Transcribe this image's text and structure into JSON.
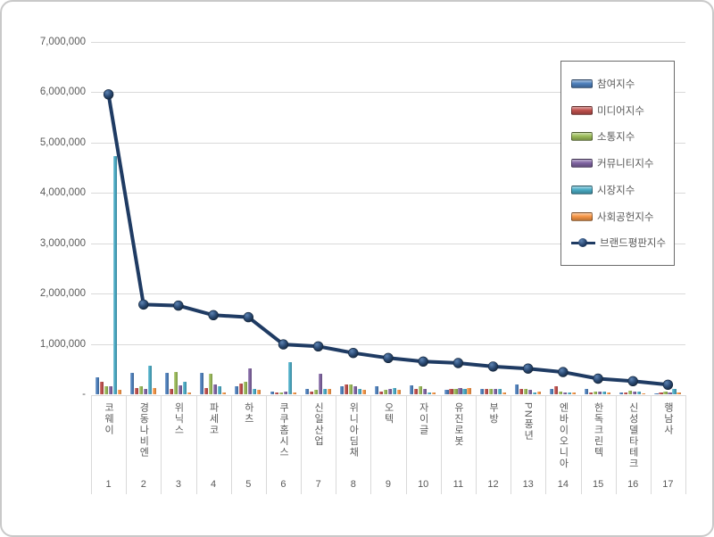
{
  "frame": {
    "background": "#ffffff",
    "border_color": "#c9c9c9"
  },
  "text_color": "#595959",
  "grid_color": "#d9d9d9",
  "chart_data": {
    "type": "bar",
    "combo": "grouped bars with line overlay",
    "title": "",
    "xlabel": "",
    "ylabel": "",
    "ylim": [
      0,
      7000000
    ],
    "ytick_interval": 1000000,
    "ytick_labels": [
      "-",
      "1,000,000",
      "2,000,000",
      "3,000,000",
      "4,000,000",
      "5,000,000",
      "6,000,000",
      "7,000,000"
    ],
    "grid": true,
    "legend_position": "upper right",
    "categories": [
      "코웨이",
      "경동나비엔",
      "위닉스",
      "파세코",
      "하츠",
      "쿠쿠홈시스",
      "신일산업",
      "위니아딤채",
      "오텍",
      "자이글",
      "유진로봇",
      "부방",
      "PN풍년",
      "엔바이오니아",
      "한독크린텍",
      "신성델타테크",
      "행남사"
    ],
    "ranks": [
      "1",
      "2",
      "3",
      "4",
      "5",
      "6",
      "7",
      "8",
      "9",
      "10",
      "11",
      "12",
      "13",
      "14",
      "15",
      "16",
      "17"
    ],
    "series": [
      {
        "name": "참여지수",
        "type": "bar",
        "color": "#4F81BD",
        "values": [
          340000,
          430000,
          430000,
          430000,
          160000,
          60000,
          100000,
          160000,
          160000,
          180000,
          90000,
          110000,
          200000,
          110000,
          110000,
          30000,
          20000
        ]
      },
      {
        "name": "미디어지수",
        "type": "bar",
        "color": "#C0504D",
        "values": [
          250000,
          130000,
          110000,
          130000,
          220000,
          40000,
          50000,
          190000,
          50000,
          110000,
          110000,
          100000,
          100000,
          160000,
          40000,
          40000,
          30000
        ]
      },
      {
        "name": "소통지수",
        "type": "bar",
        "color": "#9BBB59",
        "values": [
          160000,
          160000,
          440000,
          400000,
          250000,
          40000,
          90000,
          200000,
          90000,
          160000,
          100000,
          110000,
          110000,
          50000,
          60000,
          70000,
          50000
        ]
      },
      {
        "name": "커뮤니티지수",
        "type": "bar",
        "color": "#8064A2",
        "values": [
          160000,
          110000,
          170000,
          200000,
          520000,
          50000,
          410000,
          160000,
          100000,
          110000,
          130000,
          110000,
          90000,
          40000,
          50000,
          50000,
          40000
        ]
      },
      {
        "name": "시장지수",
        "type": "bar",
        "color": "#4BACC6",
        "values": [
          4720000,
          560000,
          250000,
          160000,
          110000,
          630000,
          100000,
          110000,
          130000,
          40000,
          110000,
          110000,
          30000,
          40000,
          50000,
          50000,
          100000
        ]
      },
      {
        "name": "사회공헌지수",
        "type": "bar",
        "color": "#F79646",
        "values": [
          90000,
          130000,
          40000,
          40000,
          90000,
          40000,
          100000,
          90000,
          90000,
          40000,
          130000,
          30000,
          50000,
          40000,
          30000,
          20000,
          30000
        ]
      },
      {
        "name": "브랜드평판지수",
        "type": "line",
        "color": "#1F3B63",
        "values": [
          5950000,
          1780000,
          1760000,
          1570000,
          1530000,
          990000,
          950000,
          820000,
          720000,
          650000,
          620000,
          550000,
          510000,
          440000,
          310000,
          260000,
          190000
        ]
      }
    ]
  }
}
